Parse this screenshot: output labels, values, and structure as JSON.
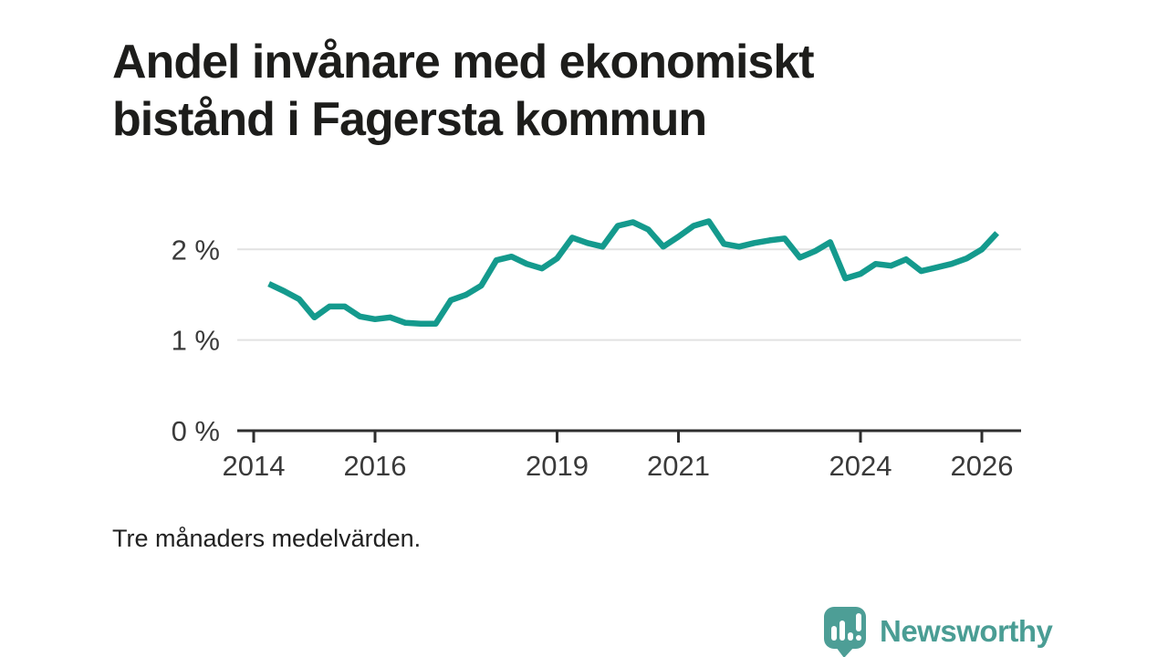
{
  "header": {
    "title": "Andel invånare med ekonomiskt\nbistånd i Fagersta kommun"
  },
  "footnote": "Tre månaders medelvärden.",
  "branding": {
    "name": "Newsworthy",
    "logo_icon": "speech-bubble-bar-chart",
    "color": "#4a9d94"
  },
  "chart_data": {
    "type": "line",
    "title": "Andel invånare med ekonomiskt bistånd i Fagersta kommun",
    "note": "Tre månaders medelvärden.",
    "unit": "%",
    "grid": "horizontal",
    "legend": "none",
    "line_color": "#149a8d",
    "axis_color": "#2e2e2e",
    "grid_color": "#e2e2e2",
    "x_range": [
      2013.73,
      2026.68
    ],
    "y_range": [
      0,
      2.5
    ],
    "x_ticks": [
      {
        "label": "2014",
        "year": 2014
      },
      {
        "label": "2016",
        "year": 2016
      },
      {
        "label": "2019",
        "year": 2019
      },
      {
        "label": "2021",
        "year": 2021
      },
      {
        "label": "2024",
        "year": 2024
      },
      {
        "label": "2026",
        "year": 2026
      }
    ],
    "y_ticks": [
      {
        "label": "0 %",
        "value": 0
      },
      {
        "label": "1 %",
        "value": 1
      },
      {
        "label": "2 %",
        "value": 2
      }
    ],
    "series": [
      {
        "name": "Andel invånare med ekonomiskt bistånd, Fagersta kommun",
        "x": [
          2014.25,
          2014.5,
          2014.75,
          2015.0,
          2015.25,
          2015.5,
          2015.75,
          2016.0,
          2016.25,
          2016.5,
          2016.75,
          2017.0,
          2017.25,
          2017.5,
          2017.75,
          2018.0,
          2018.25,
          2018.5,
          2018.75,
          2019.0,
          2019.25,
          2019.5,
          2019.75,
          2020.0,
          2020.25,
          2020.5,
          2020.75,
          2021.0,
          2021.25,
          2021.5,
          2021.75,
          2022.0,
          2022.25,
          2022.5,
          2022.75,
          2023.0,
          2023.25,
          2023.5,
          2023.75,
          2024.0,
          2024.25,
          2024.5,
          2024.75,
          2025.0,
          2025.25,
          2025.5,
          2025.75,
          2026.0,
          2026.25
        ],
        "values": [
          1.62,
          1.54,
          1.45,
          1.25,
          1.37,
          1.37,
          1.26,
          1.23,
          1.25,
          1.19,
          1.18,
          1.18,
          1.44,
          1.5,
          1.6,
          1.88,
          1.92,
          1.84,
          1.79,
          1.9,
          2.13,
          2.07,
          2.03,
          2.26,
          2.3,
          2.22,
          2.03,
          2.14,
          2.26,
          2.31,
          2.06,
          2.03,
          2.07,
          2.1,
          2.12,
          1.91,
          1.98,
          2.08,
          1.68,
          1.73,
          1.84,
          1.82,
          1.89,
          1.76,
          1.8,
          1.84,
          1.9,
          2.0,
          2.18
        ]
      }
    ]
  }
}
